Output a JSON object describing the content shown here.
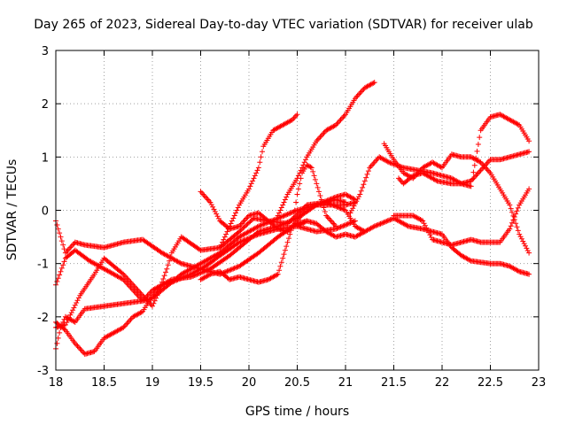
{
  "chart_data": {
    "type": "scatter",
    "title": "Day 265 of 2023, Sidereal Day-to-day VTEC variation (SDTVAR) for receiver ulab",
    "xlabel": "GPS time / hours",
    "ylabel": "SDTVAR / TECUs",
    "xlim": [
      18,
      23
    ],
    "ylim": [
      -3,
      3
    ],
    "xticks": [
      "18",
      "18.5",
      "19",
      "19.5",
      "20",
      "20.5",
      "21",
      "21.5",
      "22",
      "22.5",
      "23"
    ],
    "yticks": [
      "-3",
      "-2",
      "-1",
      "0",
      "1",
      "2",
      "3"
    ],
    "grid": true,
    "marker": "+",
    "color": "#ff0000",
    "series": [
      {
        "name": "s1",
        "points": [
          [
            18.0,
            -1.4
          ],
          [
            18.1,
            -0.9
          ],
          [
            18.2,
            -0.75
          ],
          [
            18.35,
            -0.95
          ],
          [
            18.5,
            -1.1
          ],
          [
            18.7,
            -1.3
          ],
          [
            18.9,
            -1.7
          ],
          [
            19.0,
            -1.65
          ],
          [
            19.1,
            -1.5
          ],
          [
            19.3,
            -1.2
          ],
          [
            19.5,
            -1.0
          ],
          [
            19.7,
            -0.8
          ],
          [
            19.9,
            -0.5
          ],
          [
            20.1,
            -0.3
          ],
          [
            20.3,
            -0.15
          ],
          [
            20.5,
            0.0
          ],
          [
            20.7,
            0.1
          ],
          [
            20.9,
            0.2
          ],
          [
            21.0,
            0.15
          ]
        ]
      },
      {
        "name": "s2",
        "points": [
          [
            18.0,
            -0.2
          ],
          [
            18.05,
            -0.5
          ],
          [
            18.1,
            -0.8
          ],
          [
            18.2,
            -0.6
          ],
          [
            18.3,
            -0.65
          ],
          [
            18.5,
            -0.7
          ],
          [
            18.7,
            -0.6
          ],
          [
            18.9,
            -0.55
          ],
          [
            19.1,
            -0.8
          ],
          [
            19.3,
            -1.0
          ],
          [
            19.5,
            -1.1
          ],
          [
            19.7,
            -1.2
          ],
          [
            19.9,
            -1.05
          ],
          [
            20.1,
            -0.8
          ],
          [
            20.3,
            -0.5
          ],
          [
            20.5,
            -0.25
          ],
          [
            20.6,
            -0.2
          ]
        ]
      },
      {
        "name": "s3",
        "points": [
          [
            18.0,
            -2.1
          ],
          [
            18.1,
            -2.25
          ],
          [
            18.2,
            -2.5
          ],
          [
            18.3,
            -2.7
          ],
          [
            18.4,
            -2.65
          ],
          [
            18.5,
            -2.4
          ],
          [
            18.6,
            -2.3
          ],
          [
            18.7,
            -2.2
          ],
          [
            18.8,
            -2.0
          ],
          [
            18.9,
            -1.9
          ],
          [
            19.0,
            -1.6
          ],
          [
            19.1,
            -1.4
          ],
          [
            19.2,
            -1.35
          ],
          [
            19.4,
            -1.2
          ],
          [
            19.55,
            -1.05
          ],
          [
            19.7,
            -0.85
          ],
          [
            19.9,
            -0.6
          ],
          [
            20.1,
            -0.45
          ],
          [
            20.3,
            -0.35
          ],
          [
            20.5,
            -0.3
          ],
          [
            20.7,
            -0.4
          ],
          [
            20.9,
            -0.35
          ],
          [
            21.1,
            -0.2
          ]
        ]
      },
      {
        "name": "s4",
        "points": [
          [
            18.0,
            -2.6
          ],
          [
            18.05,
            -2.2
          ],
          [
            18.1,
            -2.0
          ],
          [
            18.2,
            -2.1
          ],
          [
            18.3,
            -1.85
          ],
          [
            18.5,
            -1.8
          ],
          [
            18.7,
            -1.75
          ],
          [
            18.9,
            -1.7
          ],
          [
            19.0,
            -1.5
          ],
          [
            19.2,
            -1.3
          ],
          [
            19.4,
            -1.25
          ],
          [
            19.6,
            -1.1
          ],
          [
            19.8,
            -0.85
          ],
          [
            20.0,
            -0.55
          ],
          [
            20.1,
            -0.4
          ],
          [
            20.3,
            -0.3
          ],
          [
            20.5,
            -0.15
          ],
          [
            20.7,
            0.1
          ],
          [
            20.9,
            0.25
          ],
          [
            21.0,
            0.3
          ],
          [
            21.1,
            0.2
          ]
        ]
      },
      {
        "name": "s5",
        "points": [
          [
            18.0,
            -2.2
          ],
          [
            18.1,
            -2.15
          ],
          [
            18.25,
            -1.6
          ],
          [
            18.4,
            -1.2
          ],
          [
            18.5,
            -0.9
          ],
          [
            18.7,
            -1.2
          ],
          [
            18.9,
            -1.6
          ],
          [
            19.0,
            -1.8
          ],
          [
            19.05,
            -1.6
          ],
          [
            19.15,
            -1.1
          ],
          [
            19.2,
            -0.8
          ],
          [
            19.3,
            -0.5
          ],
          [
            19.5,
            -0.75
          ],
          [
            19.7,
            -0.7
          ],
          [
            19.9,
            -0.4
          ],
          [
            20.05,
            -0.15
          ],
          [
            20.2,
            -0.2
          ],
          [
            20.4,
            -0.25
          ],
          [
            20.6,
            0.1
          ],
          [
            20.8,
            0.15
          ],
          [
            21.0,
            0.0
          ],
          [
            21.1,
            -0.3
          ],
          [
            21.2,
            -0.4
          ]
        ]
      },
      {
        "name": "s6",
        "points": [
          [
            19.5,
            0.35
          ],
          [
            19.6,
            0.15
          ],
          [
            19.7,
            -0.2
          ],
          [
            19.8,
            -0.35
          ],
          [
            19.9,
            -0.3
          ],
          [
            20.0,
            -0.1
          ],
          [
            20.1,
            -0.05
          ],
          [
            20.2,
            -0.2
          ],
          [
            20.3,
            -0.35
          ],
          [
            20.4,
            -0.4
          ],
          [
            20.5,
            -0.2
          ],
          [
            20.6,
            0.05
          ],
          [
            20.7,
            0.1
          ],
          [
            20.9,
            0.1
          ],
          [
            21.0,
            0.1
          ],
          [
            21.1,
            0.15
          ]
        ]
      },
      {
        "name": "s7",
        "points": [
          [
            19.5,
            -1.3
          ],
          [
            19.6,
            -1.2
          ],
          [
            19.7,
            -1.15
          ],
          [
            19.8,
            -1.3
          ],
          [
            19.9,
            -1.25
          ],
          [
            20.0,
            -1.3
          ],
          [
            20.1,
            -1.35
          ],
          [
            20.2,
            -1.3
          ],
          [
            20.3,
            -1.2
          ],
          [
            20.35,
            -0.9
          ],
          [
            20.4,
            -0.6
          ],
          [
            20.45,
            -0.3
          ],
          [
            20.5,
            0.3
          ],
          [
            20.55,
            0.7
          ],
          [
            20.6,
            0.85
          ],
          [
            20.65,
            0.8
          ],
          [
            20.7,
            0.5
          ],
          [
            20.75,
            0.2
          ],
          [
            20.8,
            -0.1
          ],
          [
            20.85,
            -0.2
          ],
          [
            20.9,
            -0.3
          ]
        ]
      },
      {
        "name": "s8",
        "points": [
          [
            19.7,
            -0.7
          ],
          [
            19.8,
            -0.3
          ],
          [
            19.9,
            0.1
          ],
          [
            20.0,
            0.4
          ],
          [
            20.1,
            0.8
          ],
          [
            20.15,
            1.2
          ],
          [
            20.25,
            1.5
          ],
          [
            20.35,
            1.6
          ],
          [
            20.45,
            1.7
          ],
          [
            20.5,
            1.8
          ]
        ]
      },
      {
        "name": "s9",
        "points": [
          [
            20.3,
            -0.1
          ],
          [
            20.4,
            0.3
          ],
          [
            20.5,
            0.6
          ],
          [
            20.6,
            1.0
          ],
          [
            20.7,
            1.3
          ],
          [
            20.8,
            1.5
          ],
          [
            20.9,
            1.6
          ],
          [
            21.0,
            1.8
          ],
          [
            21.1,
            2.1
          ],
          [
            21.2,
            2.3
          ],
          [
            21.3,
            2.4
          ]
        ]
      },
      {
        "name": "s10",
        "points": [
          [
            20.5,
            -0.3
          ],
          [
            20.6,
            -0.2
          ],
          [
            20.7,
            -0.25
          ],
          [
            20.8,
            -0.4
          ],
          [
            20.9,
            -0.5
          ],
          [
            21.0,
            -0.45
          ],
          [
            21.1,
            -0.5
          ],
          [
            21.3,
            -0.3
          ],
          [
            21.5,
            -0.15
          ],
          [
            21.65,
            -0.3
          ],
          [
            21.8,
            -0.35
          ],
          [
            22.0,
            -0.45
          ],
          [
            22.1,
            -0.7
          ],
          [
            22.2,
            -0.85
          ],
          [
            22.3,
            -0.95
          ],
          [
            22.5,
            -1.0
          ],
          [
            22.6,
            -1.0
          ],
          [
            22.7,
            -1.05
          ],
          [
            22.8,
            -1.15
          ],
          [
            22.9,
            -1.2
          ]
        ]
      },
      {
        "name": "s11",
        "points": [
          [
            21.05,
            -0.05
          ],
          [
            21.15,
            0.3
          ],
          [
            21.25,
            0.8
          ],
          [
            21.35,
            1.0
          ],
          [
            21.45,
            0.9
          ],
          [
            21.6,
            0.8
          ],
          [
            21.75,
            0.75
          ],
          [
            21.9,
            0.7
          ],
          [
            22.0,
            0.65
          ],
          [
            22.1,
            0.6
          ],
          [
            22.2,
            0.5
          ],
          [
            22.3,
            0.55
          ],
          [
            22.4,
            0.75
          ],
          [
            22.5,
            0.95
          ],
          [
            22.6,
            0.95
          ],
          [
            22.7,
            1.0
          ],
          [
            22.8,
            1.05
          ],
          [
            22.9,
            1.1
          ]
        ]
      },
      {
        "name": "s12",
        "points": [
          [
            21.5,
            -0.1
          ],
          [
            21.6,
            -0.1
          ],
          [
            21.7,
            -0.1
          ],
          [
            21.8,
            -0.2
          ],
          [
            21.9,
            -0.55
          ],
          [
            22.0,
            -0.6
          ],
          [
            22.1,
            -0.65
          ],
          [
            22.2,
            -0.6
          ],
          [
            22.3,
            -0.55
          ],
          [
            22.4,
            -0.6
          ],
          [
            22.5,
            -0.6
          ],
          [
            22.6,
            -0.6
          ],
          [
            22.7,
            -0.35
          ],
          [
            22.8,
            0.1
          ],
          [
            22.9,
            0.4
          ]
        ]
      },
      {
        "name": "s13",
        "points": [
          [
            21.4,
            1.25
          ],
          [
            21.5,
            0.95
          ],
          [
            21.6,
            0.7
          ],
          [
            21.7,
            0.6
          ],
          [
            21.8,
            0.8
          ],
          [
            21.9,
            0.9
          ],
          [
            22.0,
            0.8
          ],
          [
            22.1,
            1.05
          ],
          [
            22.2,
            1.0
          ],
          [
            22.3,
            1.0
          ],
          [
            22.4,
            0.9
          ],
          [
            22.5,
            0.7
          ],
          [
            22.6,
            0.4
          ],
          [
            22.7,
            0.1
          ],
          [
            22.8,
            -0.45
          ],
          [
            22.9,
            -0.8
          ]
        ]
      },
      {
        "name": "s14",
        "points": [
          [
            21.55,
            0.6
          ],
          [
            21.6,
            0.5
          ],
          [
            21.7,
            0.65
          ],
          [
            21.8,
            0.7
          ],
          [
            21.9,
            0.6
          ],
          [
            21.95,
            0.55
          ],
          [
            22.1,
            0.5
          ],
          [
            22.2,
            0.5
          ],
          [
            22.3,
            0.45
          ],
          [
            22.4,
            1.5
          ],
          [
            22.5,
            1.75
          ],
          [
            22.6,
            1.8
          ],
          [
            22.7,
            1.7
          ],
          [
            22.8,
            1.6
          ],
          [
            22.9,
            1.3
          ]
        ]
      }
    ]
  }
}
